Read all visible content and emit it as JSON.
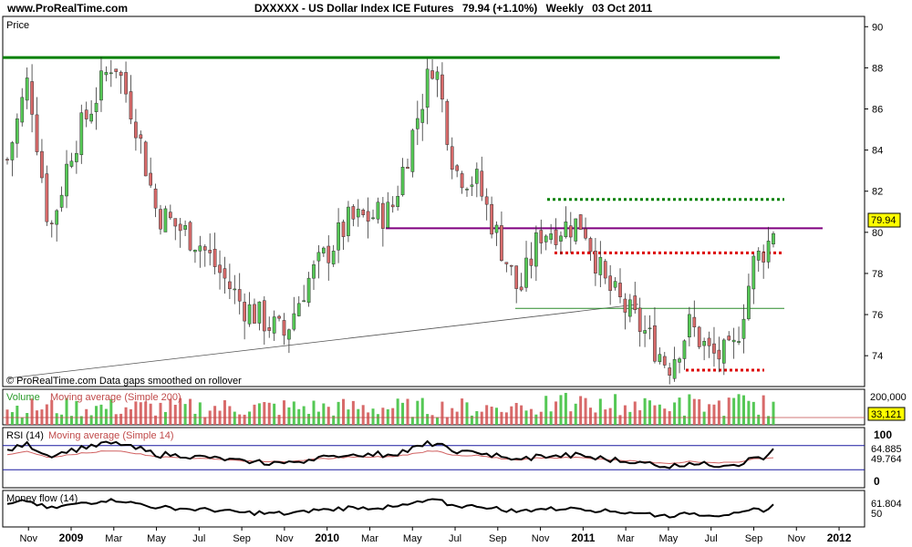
{
  "header": {
    "site": "www.ProRealTime.com",
    "symbol": "DXXXXX - US Dollar Index ICE Futures",
    "quote": "79.94 (+1.10%)",
    "period": "Weekly",
    "date": "03 Oct 2011"
  },
  "price_panel": {
    "title": "Price",
    "copyright": "© ProRealTime.com  Data gaps smoothed on rollover",
    "last_value": "79.94",
    "y_ticks": [
      "74",
      "76",
      "78",
      "80",
      "82",
      "84",
      "86",
      "88",
      "90"
    ]
  },
  "volume_panel": {
    "title_a": "Volume",
    "title_b": "Moving average (Simple 200)",
    "scale_label": "200,000",
    "last_value": "33,121"
  },
  "rsi_panel": {
    "title_a": "RSI (14)",
    "title_b": "Moving average (Simple 14)",
    "top_label": "100",
    "bottom_label": "0",
    "last_value": "64.885",
    "last_ma": "49.764"
  },
  "mfi_panel": {
    "title": "Money flow (14)",
    "last_value": "61.804",
    "hidden_label": "50"
  },
  "x_axis": {
    "labels": [
      {
        "text": "Nov",
        "bold": false
      },
      {
        "text": "2009",
        "bold": true
      },
      {
        "text": "Mar",
        "bold": false
      },
      {
        "text": "May",
        "bold": false
      },
      {
        "text": "Jul",
        "bold": false
      },
      {
        "text": "Sep",
        "bold": false
      },
      {
        "text": "Nov",
        "bold": false
      },
      {
        "text": "2010",
        "bold": true
      },
      {
        "text": "Mar",
        "bold": false
      },
      {
        "text": "May",
        "bold": false
      },
      {
        "text": "Jul",
        "bold": false
      },
      {
        "text": "Sep",
        "bold": false
      },
      {
        "text": "Nov",
        "bold": false
      },
      {
        "text": "2011",
        "bold": true
      },
      {
        "text": "Mar",
        "bold": false
      },
      {
        "text": "May",
        "bold": false
      },
      {
        "text": "Jul",
        "bold": false
      },
      {
        "text": "Sep",
        "bold": false
      },
      {
        "text": "Nov",
        "bold": false
      },
      {
        "text": "2012",
        "bold": true
      }
    ]
  },
  "colors": {
    "up": "#55c855",
    "down": "#d86a6a",
    "resistance": "#008000",
    "support_line": "#800080",
    "dotted_red": "#dd0000",
    "dotted_green": "#008000",
    "rsi_ma": "#d06060",
    "band": "#1a1aa0"
  },
  "chart_data": {
    "type": "candlestick",
    "period": "Weekly",
    "ylim": [
      72.5,
      90.5
    ],
    "price_anchors": [
      {
        "date": "2008-10",
        "close": 83.5
      },
      {
        "date": "2008-11",
        "close": 87.5
      },
      {
        "date": "2008-12",
        "close": 80.0
      },
      {
        "date": "2009-01",
        "close": 84.0
      },
      {
        "date": "2009-03",
        "close": 88.5
      },
      {
        "date": "2009-04",
        "close": 85.5
      },
      {
        "date": "2009-05",
        "close": 81.0
      },
      {
        "date": "2009-07",
        "close": 79.5
      },
      {
        "date": "2009-09",
        "close": 76.5
      },
      {
        "date": "2009-11",
        "close": 75.0
      },
      {
        "date": "2009-12",
        "close": 77.5
      },
      {
        "date": "2010-02",
        "close": 80.5
      },
      {
        "date": "2010-04",
        "close": 81.0
      },
      {
        "date": "2010-06",
        "close": 88.5
      },
      {
        "date": "2010-07",
        "close": 83.0
      },
      {
        "date": "2010-08",
        "close": 82.5
      },
      {
        "date": "2010-10",
        "close": 77.0
      },
      {
        "date": "2010-11",
        "close": 80.0
      },
      {
        "date": "2011-01",
        "close": 80.5
      },
      {
        "date": "2011-02",
        "close": 77.5
      },
      {
        "date": "2011-04",
        "close": 75.0
      },
      {
        "date": "2011-05",
        "close": 73.5
      },
      {
        "date": "2011-06",
        "close": 75.5
      },
      {
        "date": "2011-07",
        "close": 74.0
      },
      {
        "date": "2011-08",
        "close": 74.0
      },
      {
        "date": "2011-09",
        "close": 78.5
      },
      {
        "date": "2011-10",
        "close": 79.94
      }
    ],
    "horizontal_levels": [
      {
        "name": "resistance",
        "value": 88.5,
        "style": "solid"
      },
      {
        "name": "support-resistance",
        "value": 80.2,
        "style": "solid"
      },
      {
        "name": "upper-dotted-green",
        "value": 81.6,
        "style": "dotted"
      },
      {
        "name": "mid-dotted-red",
        "value": 79.0,
        "style": "dotted"
      },
      {
        "name": "lower-green",
        "value": 76.3,
        "style": "solid"
      },
      {
        "name": "bottom-dotted-red",
        "value": 73.3,
        "style": "dotted"
      }
    ],
    "rsi_last": 64.885,
    "rsi_ma_last": 49.764,
    "mfi_last": 61.804,
    "volume_last": 33121
  }
}
